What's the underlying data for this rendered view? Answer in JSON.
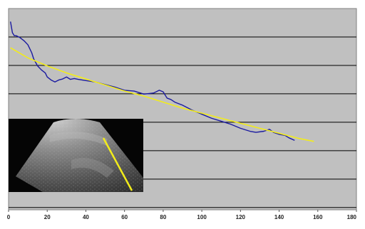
{
  "chart_data": {
    "type": "line",
    "title": "",
    "xlabel": "",
    "ylabel": "",
    "xlim": [
      0,
      180
    ],
    "x_ticks": [
      "0",
      "20",
      "40",
      "60",
      "80",
      "100",
      "120",
      "140",
      "160",
      "180"
    ],
    "y_gridline_count": 7,
    "y_tick_labels_visible": false,
    "grid": true,
    "plot_background": "#c0c0c0",
    "legend": "none",
    "series": [
      {
        "color": "#1a1aa0",
        "x": [
          1,
          2,
          3,
          4,
          6,
          8,
          10,
          11,
          12,
          13,
          15,
          17,
          19,
          20,
          22,
          24,
          26,
          28,
          30,
          32,
          34,
          36,
          40,
          45,
          50,
          55,
          60,
          65,
          70,
          75,
          78,
          80,
          82,
          84,
          86,
          90,
          95,
          100,
          105,
          110,
          115,
          120,
          125,
          128,
          132,
          135,
          137,
          140,
          143,
          145,
          148
        ],
        "y": [
          0.935,
          0.88,
          0.865,
          0.865,
          0.855,
          0.84,
          0.82,
          0.8,
          0.78,
          0.75,
          0.715,
          0.695,
          0.68,
          0.66,
          0.645,
          0.635,
          0.645,
          0.65,
          0.66,
          0.648,
          0.652,
          0.648,
          0.642,
          0.635,
          0.622,
          0.61,
          0.594,
          0.59,
          0.575,
          0.58,
          0.594,
          0.586,
          0.555,
          0.548,
          0.535,
          0.52,
          0.495,
          0.475,
          0.455,
          0.44,
          0.425,
          0.405,
          0.39,
          0.385,
          0.39,
          0.4,
          0.385,
          0.375,
          0.37,
          0.358,
          0.345
        ]
      },
      {
        "color": "#f2ec1a",
        "x": [
          1,
          10,
          20,
          30,
          40,
          50,
          60,
          70,
          80,
          90,
          100,
          110,
          120,
          130,
          140,
          150,
          158
        ],
        "y": [
          0.805,
          0.755,
          0.715,
          0.68,
          0.65,
          0.62,
          0.59,
          0.565,
          0.535,
          0.505,
          0.48,
          0.455,
          0.43,
          0.405,
          0.38,
          0.355,
          0.34
        ]
      }
    ]
  },
  "inset_image": {
    "type": "ultrasound-scan",
    "marker_color": "#f2ec1a"
  }
}
